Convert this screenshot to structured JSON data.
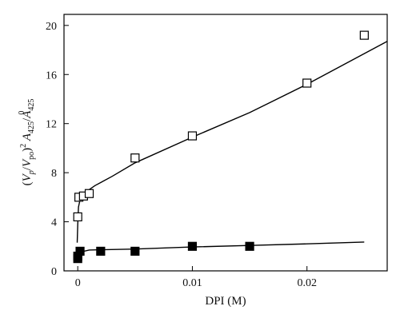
{
  "chart_data": {
    "type": "scatter",
    "xlabel": "DPI (M)",
    "ylabel": {
      "V": "V",
      "p": "p",
      "po": "po",
      "exp": "2",
      "A": "A",
      "sub": "425",
      "sup": "0"
    },
    "xlim": [
      -0.0012,
      0.027
    ],
    "ylim": [
      0,
      20.9
    ],
    "x_ticks": [
      0,
      0.01,
      0.02
    ],
    "x_tick_labels": [
      "0",
      "0.01",
      "0.02"
    ],
    "y_ticks": [
      0,
      4,
      8,
      12,
      16,
      20
    ],
    "y_tick_labels": [
      "0",
      "4",
      "8",
      "12",
      "16",
      "20"
    ],
    "grid": false,
    "series": [
      {
        "marker": "open-square",
        "color": "#000000",
        "points": [
          {
            "x": 0.0,
            "y": 4.4
          },
          {
            "x": 0.0001,
            "y": 6.0
          },
          {
            "x": 0.0005,
            "y": 6.1
          },
          {
            "x": 0.001,
            "y": 6.3
          },
          {
            "x": 0.005,
            "y": 9.2
          },
          {
            "x": 0.01,
            "y": 11.0
          },
          {
            "x": 0.02,
            "y": 15.3
          },
          {
            "x": 0.025,
            "y": 19.2
          }
        ],
        "fit": [
          {
            "x": -5e-05,
            "y": 2.3
          },
          {
            "x": 0.0,
            "y": 3.8
          },
          {
            "x": 6e-05,
            "y": 5.2
          },
          {
            "x": 0.0002,
            "y": 5.8
          },
          {
            "x": 0.0005,
            "y": 6.3
          },
          {
            "x": 0.0015,
            "y": 6.95
          },
          {
            "x": 0.003,
            "y": 7.7
          },
          {
            "x": 0.005,
            "y": 8.8
          },
          {
            "x": 0.01,
            "y": 10.9
          },
          {
            "x": 0.015,
            "y": 12.9
          },
          {
            "x": 0.02,
            "y": 15.2
          },
          {
            "x": 0.025,
            "y": 17.7
          },
          {
            "x": 0.027,
            "y": 18.7
          }
        ]
      },
      {
        "marker": "filled-square",
        "color": "#000000",
        "points": [
          {
            "x": 0.0,
            "y": 1.0
          },
          {
            "x": 0.0,
            "y": 1.2
          },
          {
            "x": 0.0002,
            "y": 1.6
          },
          {
            "x": 0.002,
            "y": 1.6
          },
          {
            "x": 0.005,
            "y": 1.6
          },
          {
            "x": 0.01,
            "y": 2.0
          },
          {
            "x": 0.015,
            "y": 2.0
          }
        ],
        "fit": [
          {
            "x": -5e-05,
            "y": 0.9
          },
          {
            "x": 0.0,
            "y": 1.1
          },
          {
            "x": 0.0003,
            "y": 1.55
          },
          {
            "x": 0.001,
            "y": 1.7
          },
          {
            "x": 0.002,
            "y": 1.72
          },
          {
            "x": 0.005,
            "y": 1.78
          },
          {
            "x": 0.01,
            "y": 1.95
          },
          {
            "x": 0.015,
            "y": 2.07
          },
          {
            "x": 0.02,
            "y": 2.2
          },
          {
            "x": 0.025,
            "y": 2.35
          }
        ]
      }
    ]
  }
}
